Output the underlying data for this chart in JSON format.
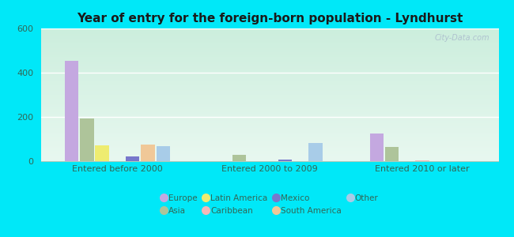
{
  "title": "Year of entry for the foreign-born population - Lyndhurst",
  "categories": [
    "Entered before 2000",
    "Entered 2000 to 2009",
    "Entered 2010 or later"
  ],
  "series_order": [
    "Europe",
    "Asia",
    "Latin America",
    "Caribbean",
    "Mexico",
    "South America",
    "Other"
  ],
  "series": {
    "Europe": [
      455,
      0,
      125
    ],
    "Asia": [
      193,
      28,
      63
    ],
    "Latin America": [
      73,
      0,
      0
    ],
    "Caribbean": [
      0,
      0,
      5
    ],
    "Mexico": [
      22,
      8,
      0
    ],
    "South America": [
      75,
      0,
      0
    ],
    "Other": [
      68,
      83,
      0
    ]
  },
  "colors": {
    "Europe": "#c4a8e0",
    "Asia": "#aec49a",
    "Latin America": "#eeec70",
    "Caribbean": "#f5b8b8",
    "Mexico": "#7878cc",
    "South America": "#f0c898",
    "Other": "#a8cce8"
  },
  "ylim": [
    0,
    600
  ],
  "yticks": [
    0,
    200,
    400,
    600
  ],
  "fig_bg_color": "#00e8f8",
  "plot_bg_color_top": "#e8f8ee",
  "plot_bg_color_bottom": "#d8f0f0",
  "watermark": "City-Data.com",
  "bar_width": 0.09,
  "legend_row1": [
    "Europe",
    "Asia",
    "Latin America",
    "Caribbean"
  ],
  "legend_row2": [
    "Mexico",
    "South America",
    "Other"
  ]
}
